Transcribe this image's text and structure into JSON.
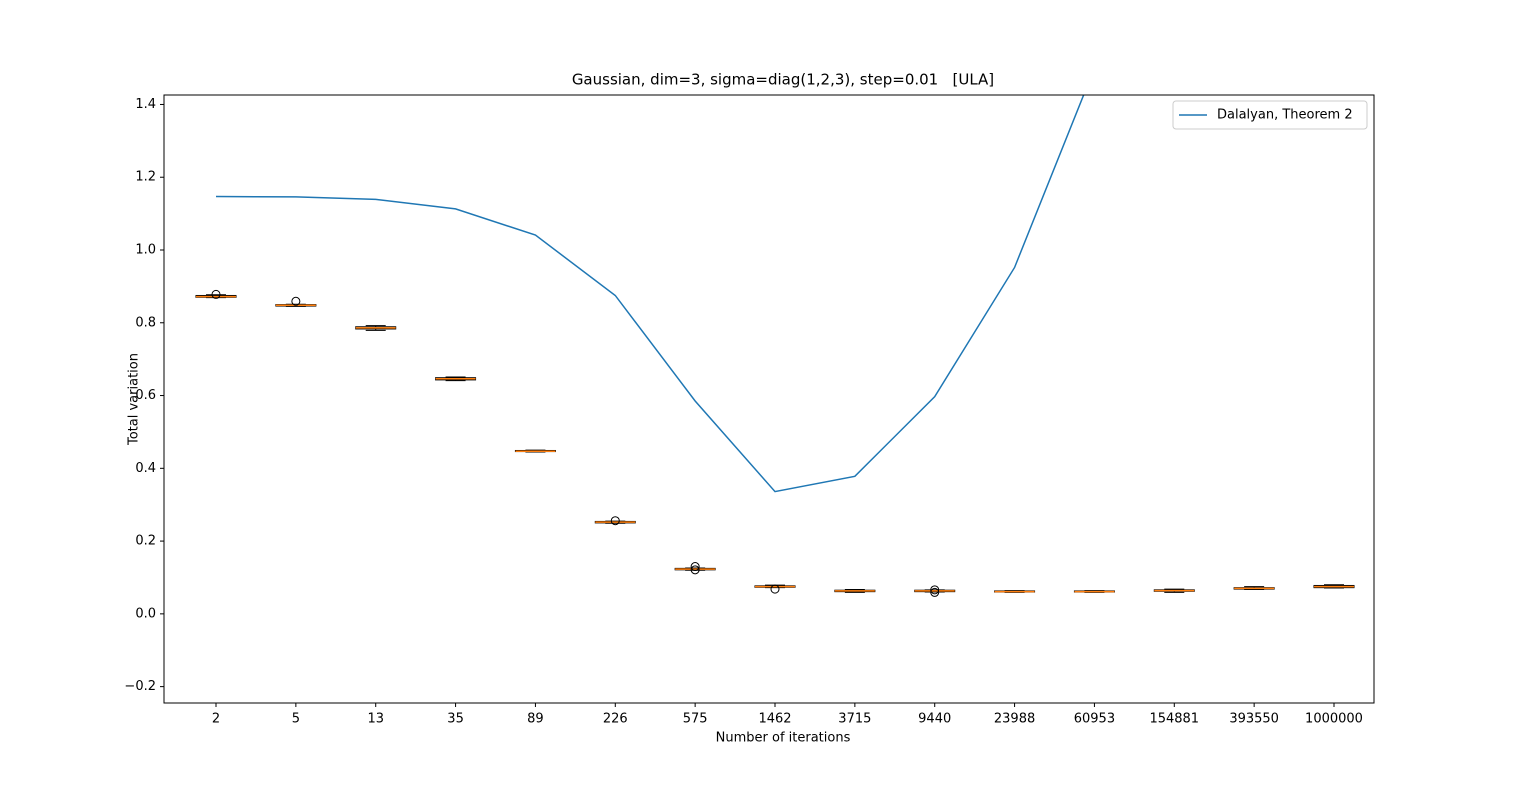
{
  "chart_data": {
    "type": "box",
    "title": "Gaussian, dim=3, sigma=diag(1,2,3), step=0.01   [ULA]",
    "xlabel": "Number of iterations",
    "ylabel": "Total variation",
    "categories": [
      "2",
      "5",
      "13",
      "35",
      "89",
      "226",
      "575",
      "1462",
      "3715",
      "9440",
      "23988",
      "60953",
      "154881",
      "393550",
      "1000000"
    ],
    "box_color": "#000000",
    "median_color": "#ff7f0e",
    "boxes": [
      {
        "low": 0.869,
        "q1": 0.87,
        "median": 0.872,
        "q3": 0.875,
        "high": 0.877,
        "outliers": [
          0.878
        ]
      },
      {
        "low": 0.845,
        "q1": 0.846,
        "median": 0.848,
        "q3": 0.85,
        "high": 0.851,
        "outliers": [
          0.859
        ]
      },
      {
        "low": 0.779,
        "q1": 0.783,
        "median": 0.786,
        "q3": 0.789,
        "high": 0.792,
        "outliers": []
      },
      {
        "low": 0.641,
        "q1": 0.643,
        "median": 0.646,
        "q3": 0.649,
        "high": 0.651,
        "outliers": []
      },
      {
        "low": 0.445,
        "q1": 0.446,
        "median": 0.447,
        "q3": 0.449,
        "high": 0.45,
        "outliers": []
      },
      {
        "low": 0.249,
        "q1": 0.25,
        "median": 0.252,
        "q3": 0.254,
        "high": 0.255,
        "outliers": [
          0.256
        ]
      },
      {
        "low": 0.12,
        "q1": 0.121,
        "median": 0.123,
        "q3": 0.125,
        "high": 0.126,
        "outliers": [
          0.121,
          0.13
        ]
      },
      {
        "low": 0.072,
        "q1": 0.073,
        "median": 0.075,
        "q3": 0.077,
        "high": 0.079,
        "outliers": [
          0.068
        ]
      },
      {
        "low": 0.059,
        "q1": 0.061,
        "median": 0.063,
        "q3": 0.065,
        "high": 0.067,
        "outliers": []
      },
      {
        "low": 0.06,
        "q1": 0.061,
        "median": 0.063,
        "q3": 0.065,
        "high": 0.066,
        "outliers": [
          0.059,
          0.066
        ]
      },
      {
        "low": 0.059,
        "q1": 0.06,
        "median": 0.061,
        "q3": 0.063,
        "high": 0.064,
        "outliers": []
      },
      {
        "low": 0.059,
        "q1": 0.06,
        "median": 0.061,
        "q3": 0.063,
        "high": 0.064,
        "outliers": []
      },
      {
        "low": 0.059,
        "q1": 0.062,
        "median": 0.064,
        "q3": 0.066,
        "high": 0.068,
        "outliers": []
      },
      {
        "low": 0.067,
        "q1": 0.068,
        "median": 0.07,
        "q3": 0.072,
        "high": 0.075,
        "outliers": []
      },
      {
        "low": 0.071,
        "q1": 0.072,
        "median": 0.075,
        "q3": 0.078,
        "high": 0.08,
        "outliers": []
      }
    ],
    "series": [
      {
        "name": "Dalalyan, Theorem 2",
        "type": "line",
        "color": "#1f77b4",
        "values": [
          1.147,
          1.146,
          1.139,
          1.113,
          1.041,
          0.875,
          0.585,
          0.336,
          0.378,
          0.597,
          0.952,
          1.5,
          null,
          null,
          null
        ]
      }
    ],
    "ylim": [
      -0.245,
      1.426
    ],
    "yticks": [
      {
        "value": -0.2,
        "label": "−0.2"
      },
      {
        "value": 0,
        "label": "0.0"
      },
      0.2,
      0.4,
      0.6,
      0.8,
      {
        "value": 1,
        "label": "1.0"
      },
      1.2,
      1.4
    ],
    "grid": false,
    "legend": "upper right"
  }
}
